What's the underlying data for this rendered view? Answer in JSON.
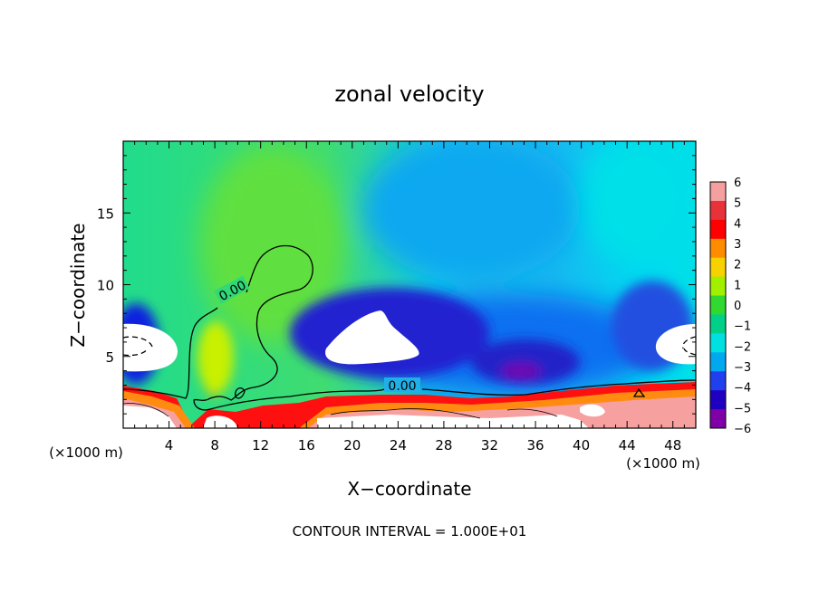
{
  "chart_data": {
    "type": "heatmap",
    "title": "zonal velocity",
    "xlabel": "X−coordinate",
    "ylabel": "Z−coordinate",
    "x_unit_left": "(×1000 m)",
    "x_unit_right": "(×1000 m)",
    "x_range": [
      0,
      50
    ],
    "y_range": [
      0,
      20
    ],
    "x_ticks": [
      4,
      8,
      12,
      16,
      20,
      24,
      28,
      32,
      36,
      40,
      44,
      48
    ],
    "y_ticks": [
      5,
      10,
      15
    ],
    "contour_labels": [
      "0.00",
      "0.00"
    ],
    "footer": "CONTOUR INTERVAL = 1.000E+01",
    "colorbar": {
      "levels": [
        "6",
        "5",
        "4",
        "3",
        "2",
        "1",
        "0",
        "−1",
        "−2",
        "−3",
        "−4",
        "−5",
        "−6"
      ],
      "colors": [
        "#f4a0a0",
        "#e8323a",
        "#ff0000",
        "#ff8c00",
        "#f5d200",
        "#a0f000",
        "#30d830",
        "#00d088",
        "#00e0e0",
        "#00a8f0",
        "#2040f0",
        "#2000c0",
        "#8000a8"
      ]
    }
  }
}
